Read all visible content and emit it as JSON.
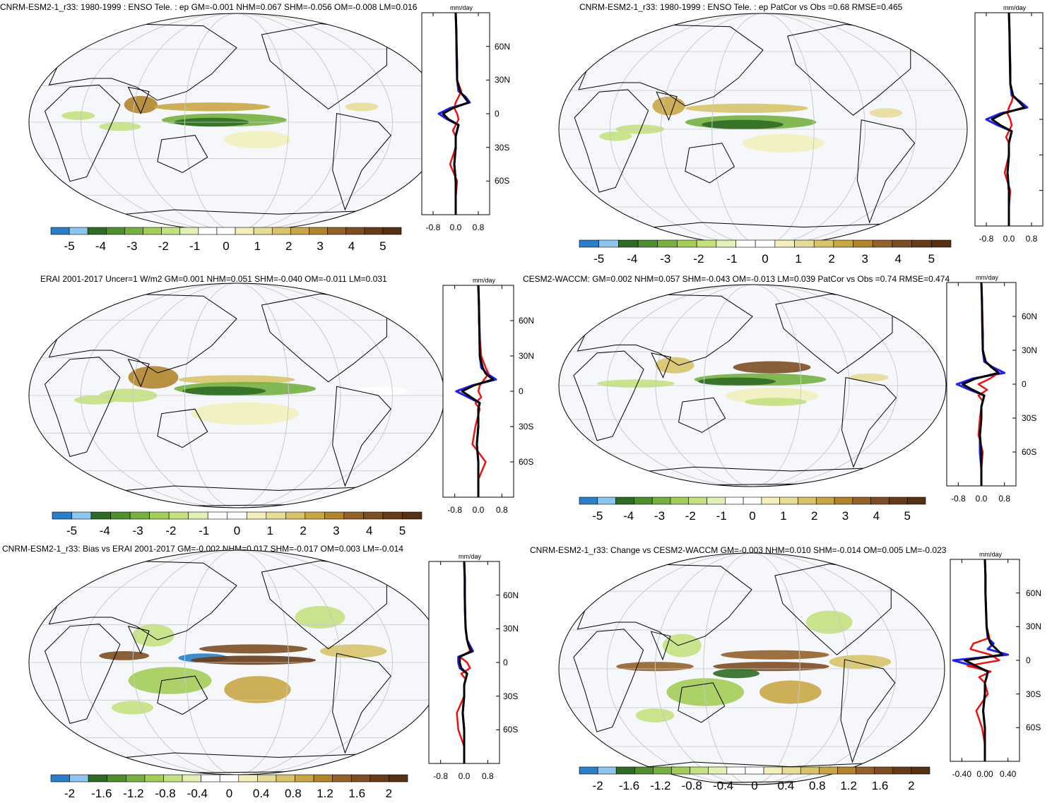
{
  "palettes": {
    "enso": [
      "#2b7fc8",
      "#8ec5ee",
      "#2f6b24",
      "#4f8f2f",
      "#76b041",
      "#a3cc58",
      "#c5e081",
      "#e2f0b6",
      "#ffffff",
      "#ffffff",
      "#f2efbd",
      "#e6dc9a",
      "#d8c36c",
      "#c8a646",
      "#b0842c",
      "#93622a",
      "#7d4e23",
      "#673b18",
      "#553012"
    ],
    "diff": [
      "#2b7fc8",
      "#8ec5ee",
      "#2f6b24",
      "#4f8f2f",
      "#76b041",
      "#a3cc58",
      "#c5e081",
      "#e2f0b6",
      "#ffffff",
      "#ffffff",
      "#f2efbd",
      "#e6dc9a",
      "#d8c36c",
      "#c8a646",
      "#b0842c",
      "#93622a",
      "#7d4e23",
      "#673b18",
      "#553012"
    ]
  },
  "line_colors": {
    "obs_or_model": "#2222ee",
    "model": "#ee1111",
    "ref": "#000000"
  },
  "panels": [
    {
      "title": "CNRM-ESM2-1_r33: 1980-1999 : ENSO Tele. : ep GM=-0.001 NHM=0.067 SHM=-0.056 OM=-0.008 LM=0.016",
      "units": "mm/day",
      "lat_labels": [
        "60N",
        "30N",
        "0",
        "30S",
        "60S"
      ],
      "x_ticks": [
        "-0.8",
        "0.0",
        "0.8"
      ],
      "colorbar_ticks": [
        "-5",
        "-4",
        "-3",
        "-2",
        "-1",
        "0",
        "1",
        "2",
        "3",
        "4",
        "5"
      ],
      "palette": "enso"
    },
    {
      "title": "CNRM-ESM2-1_r33: 1980-1999 : ENSO Tele. : ep PatCor vs Obs =0.68 RMSE=0.465",
      "units": "mm/day",
      "lat_labels": [],
      "x_ticks": [
        "-0.8",
        "0.0",
        "0.8"
      ],
      "colorbar_ticks": [
        "-5",
        "-4",
        "-3",
        "-2",
        "-1",
        "0",
        "1",
        "2",
        "3",
        "4",
        "5"
      ],
      "palette": "enso"
    },
    {
      "title": "ERAI 2001-2017 Uncer=1 W/m2 GM=0.001 NHM=0.051 SHM=-0.040 OM=-0.011 LM=0.031",
      "units": "mm/day",
      "lat_labels": [
        "60N",
        "30N",
        "0",
        "30S",
        "60S"
      ],
      "x_ticks": [
        "-0.8",
        "0.0",
        "0.8"
      ],
      "colorbar_ticks": [
        "-5",
        "-4",
        "-3",
        "-2",
        "-1",
        "0",
        "1",
        "2",
        "3",
        "4",
        "5"
      ],
      "palette": "enso"
    },
    {
      "title": "CESM2-WACCM: GM=0.002 NHM=0.057 SHM=-0.043 OM=-0.013 LM=0.039 PatCor vs Obs =0.74 RMSE=0.474",
      "units": "mm/day",
      "lat_labels": [
        "60N",
        "30N",
        "0",
        "30S",
        "60S"
      ],
      "x_ticks": [
        "-0.8",
        "0.0",
        "0.8"
      ],
      "colorbar_ticks": [
        "-5",
        "-4",
        "-3",
        "-2",
        "-1",
        "0",
        "1",
        "2",
        "3",
        "4",
        "5"
      ],
      "palette": "enso"
    },
    {
      "title": "CNRM-ESM2-1_r33: Bias vs ERAI 2001-2017 GM=-0.002 NHM=0.017 SHM=-0.017 OM=0.003 LM=-0.014",
      "units": "mm/day",
      "lat_labels": [
        "60N",
        "30N",
        "0",
        "30S",
        "60S"
      ],
      "x_ticks": [
        "-0.8",
        "0.0",
        "0.8"
      ],
      "colorbar_ticks": [
        "-2",
        "-1.6",
        "-1.2",
        "-0.8",
        "-0.4",
        "0",
        "0.4",
        "0.8",
        "1.2",
        "1.6",
        "2"
      ],
      "palette": "diff"
    },
    {
      "title": "CNRM-ESM2-1_r33: Change vs CESM2-WACCM GM=-0.003 NHM=0.010 SHM=-0.014 OM=0.005 LM=-0.023",
      "units": "mm/day",
      "lat_labels": [
        "60N",
        "30N",
        "0",
        "30S",
        "60S"
      ],
      "x_ticks": [
        "-0.40",
        "0.00",
        "0.40"
      ],
      "colorbar_ticks": [
        "-2",
        "-1.6",
        "-1.2",
        "-0.8",
        "-0.4",
        "0",
        "0.4",
        "0.8",
        "1.2",
        "1.6",
        "2"
      ],
      "palette": "diff"
    }
  ],
  "chart_data": [
    {
      "type": "line",
      "title": "CNRM-ESM2-1_r33: 1980-1999 : ENSO Tele. : ep GM=-0.001 NHM=0.067 SHM=-0.056 OM=-0.008 LM=0.016",
      "ylabel": "",
      "xlabel": "mm/day",
      "ylim": [
        -90,
        90
      ],
      "xlim": [
        -1.2,
        1.2
      ],
      "x": [
        90,
        75,
        60,
        45,
        30,
        20,
        15,
        10,
        5,
        0,
        -5,
        -10,
        -15,
        -20,
        -30,
        -45,
        -60,
        -75,
        -90
      ],
      "series": [
        {
          "values": [
            0,
            0.02,
            0.03,
            0.05,
            0.05,
            0.1,
            0.35,
            0.5,
            -0.2,
            -0.6,
            -0.3,
            0.1,
            0.05,
            0.0,
            0.0,
            -0.05,
            0.0,
            0.0,
            0
          ]
        },
        {
          "values": [
            0,
            0.02,
            0.02,
            0.03,
            0.05,
            0.2,
            0.1,
            0.0,
            -0.05,
            0.05,
            0.1,
            0.0,
            -0.1,
            0.0,
            0.0,
            -0.2,
            0.05,
            0.0,
            0
          ]
        },
        {
          "values": [
            0,
            0.02,
            0.03,
            0.04,
            0.05,
            0.15,
            0.3,
            0.45,
            -0.1,
            -0.45,
            -0.25,
            0.1,
            0.05,
            0.0,
            0.0,
            -0.05,
            0.0,
            0.0,
            0
          ]
        }
      ]
    },
    {
      "type": "line",
      "title": "CNRM-ESM2-1_r33: 1980-1999 : ENSO Tele. : ep PatCor vs Obs =0.68 RMSE=0.465",
      "ylabel": "",
      "xlabel": "mm/day",
      "ylim": [
        -90,
        90
      ],
      "xlim": [
        -1.2,
        1.2
      ],
      "x": [
        90,
        75,
        60,
        45,
        30,
        20,
        15,
        10,
        5,
        0,
        -5,
        -10,
        -15,
        -20,
        -30,
        -45,
        -60,
        -75,
        -90
      ],
      "series": [
        {
          "values": [
            0,
            0.02,
            0.03,
            0.05,
            0.05,
            0.1,
            0.4,
            0.65,
            -0.3,
            -0.8,
            -0.4,
            0.1,
            0.05,
            0.0,
            0.0,
            -0.05,
            0.0,
            0.0,
            0
          ]
        },
        {
          "values": [
            0,
            0.02,
            0.02,
            0.03,
            0.05,
            0.15,
            0.1,
            0.0,
            -0.05,
            0.05,
            0.1,
            0.0,
            -0.1,
            0.0,
            0.0,
            -0.15,
            0.05,
            0.0,
            0
          ]
        },
        {
          "values": [
            0,
            0.02,
            0.03,
            0.04,
            0.05,
            0.15,
            0.35,
            0.55,
            -0.2,
            -0.6,
            -0.3,
            0.1,
            0.05,
            0.0,
            0.0,
            -0.05,
            0.0,
            0.0,
            0
          ]
        }
      ]
    },
    {
      "type": "line",
      "title": "ERAI 2001-2017 Uncer=1 W/m2 GM=0.001 NHM=0.051 SHM=-0.040 OM=-0.011 LM=0.031",
      "ylabel": "",
      "xlabel": "mm/day",
      "ylim": [
        -90,
        90
      ],
      "xlim": [
        -1.2,
        1.2
      ],
      "x": [
        90,
        75,
        60,
        45,
        30,
        20,
        15,
        10,
        5,
        0,
        -5,
        -10,
        -15,
        -20,
        -30,
        -45,
        -60,
        -75,
        -90
      ],
      "series": [
        {
          "values": [
            0,
            0.02,
            0.03,
            0.05,
            0.05,
            0.1,
            0.3,
            0.6,
            -0.2,
            -0.75,
            -0.35,
            0.05,
            0.0,
            0.0,
            0.0,
            -0.05,
            0.0,
            0.0,
            0
          ]
        },
        {
          "values": [
            0,
            0.02,
            0.02,
            0.05,
            0.1,
            0.25,
            0.35,
            0.2,
            0.05,
            0.0,
            0.1,
            -0.1,
            0.05,
            0.0,
            -0.1,
            -0.2,
            0.25,
            0.0,
            0
          ]
        },
        {
          "values": [
            0,
            0.02,
            0.03,
            0.04,
            0.05,
            0.15,
            0.25,
            0.5,
            -0.15,
            -0.55,
            -0.25,
            0.05,
            0.0,
            0.0,
            0.0,
            -0.05,
            0.0,
            0.0,
            0
          ]
        }
      ]
    },
    {
      "type": "line",
      "title": "CESM2-WACCM: GM=0.002 NHM=0.057 SHM=-0.043 OM=-0.013 LM=0.039 PatCor vs Obs =0.74 RMSE=0.474",
      "ylabel": "",
      "xlabel": "mm/day",
      "ylim": [
        -90,
        90
      ],
      "xlim": [
        -1.2,
        1.2
      ],
      "x": [
        90,
        75,
        60,
        45,
        30,
        20,
        15,
        10,
        5,
        0,
        -5,
        -10,
        -15,
        -20,
        -30,
        -45,
        -60,
        -75,
        -90
      ],
      "series": [
        {
          "values": [
            0,
            0.02,
            0.03,
            0.05,
            0.05,
            0.1,
            0.4,
            0.8,
            -0.3,
            -0.85,
            -0.4,
            0.1,
            0.05,
            0.0,
            0.0,
            -0.05,
            -0.05,
            0.0,
            0
          ]
        },
        {
          "values": [
            0,
            0.02,
            0.02,
            0.03,
            0.05,
            0.15,
            0.35,
            0.6,
            0.3,
            -0.1,
            0.2,
            -0.1,
            0.05,
            0.0,
            -0.05,
            -0.1,
            0.05,
            0.0,
            0
          ]
        },
        {
          "values": [
            0,
            0.02,
            0.03,
            0.04,
            0.05,
            0.15,
            0.35,
            0.6,
            -0.2,
            -0.65,
            -0.3,
            0.1,
            0.05,
            0.0,
            0.0,
            -0.05,
            0.0,
            0.0,
            0
          ]
        }
      ]
    },
    {
      "type": "line",
      "title": "CNRM-ESM2-1_r33: Bias vs ERAI 2001-2017 GM=-0.002 NHM=0.017 SHM=-0.017 OM=0.003 LM=-0.014",
      "ylabel": "",
      "xlabel": "mm/day",
      "ylim": [
        -90,
        90
      ],
      "xlim": [
        -1.2,
        1.2
      ],
      "x": [
        90,
        75,
        60,
        45,
        30,
        20,
        15,
        10,
        5,
        0,
        -5,
        -10,
        -15,
        -20,
        -30,
        -45,
        -60,
        -75,
        -90
      ],
      "series": [
        {
          "values": [
            0,
            0.02,
            0.02,
            0.03,
            0.05,
            0.1,
            0.2,
            0.3,
            -0.2,
            -0.2,
            -0.15,
            0.1,
            0.05,
            0.0,
            0.0,
            -0.05,
            0.0,
            0.0,
            0
          ]
        },
        {
          "values": [
            0,
            0.02,
            0.02,
            0.03,
            0.05,
            0.1,
            0.15,
            0.2,
            -0.15,
            0.1,
            0.2,
            -0.1,
            0.05,
            0.0,
            0.0,
            -0.25,
            -0.2,
            0.0,
            0
          ]
        },
        {
          "values": [
            0,
            0.02,
            0.02,
            0.03,
            0.05,
            0.1,
            0.15,
            0.25,
            -0.15,
            -0.15,
            -0.1,
            0.1,
            0.05,
            0.0,
            0.0,
            -0.05,
            0.0,
            0.0,
            0
          ]
        }
      ]
    },
    {
      "type": "line",
      "title": "CNRM-ESM2-1_r33: Change vs CESM2-WACCM GM=-0.003 NHM=0.010 SHM=-0.014 OM=0.005 LM=-0.023",
      "ylabel": "",
      "xlabel": "mm/day",
      "ylim": [
        -90,
        90
      ],
      "xlim": [
        -0.6,
        0.6
      ],
      "x": [
        90,
        75,
        60,
        45,
        30,
        20,
        15,
        10,
        5,
        0,
        -5,
        -10,
        -15,
        -20,
        -30,
        -45,
        -60,
        -75,
        -90
      ],
      "series": [
        {
          "values": [
            0,
            0.01,
            0.01,
            0.02,
            0.03,
            0.05,
            0.15,
            0.05,
            0.4,
            -0.55,
            -0.2,
            0.05,
            0.03,
            0.0,
            0.0,
            -0.03,
            0.0,
            0.0,
            0
          ]
        },
        {
          "values": [
            0,
            0.01,
            0.01,
            0.02,
            0.03,
            0.08,
            -0.2,
            -0.25,
            0.1,
            0.25,
            -0.3,
            0.1,
            -0.1,
            0.0,
            0.05,
            -0.15,
            -0.05,
            0.0,
            0
          ]
        },
        {
          "values": [
            0,
            0.01,
            0.01,
            0.02,
            0.03,
            0.06,
            0.1,
            0.2,
            0.3,
            -0.35,
            -0.15,
            0.05,
            0.03,
            0.0,
            0.0,
            -0.03,
            0.0,
            0.0,
            0
          ]
        }
      ]
    }
  ]
}
